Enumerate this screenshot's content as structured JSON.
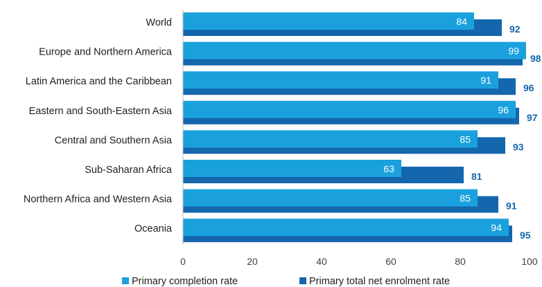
{
  "chart_data": {
    "type": "bar",
    "orientation": "horizontal",
    "title": "",
    "xlabel": "",
    "ylabel": "",
    "xlim": [
      0,
      100
    ],
    "x_ticks": [
      0,
      20,
      40,
      60,
      80,
      100
    ],
    "grid": false,
    "legend_position": "bottom",
    "categories": [
      "World",
      "Europe and Northern America",
      "Latin America and the Caribbean",
      "Eastern and South-Eastern Asia",
      "Central and Southern Asia",
      "Sub-Saharan Africa",
      "Northern Africa and Western Asia",
      "Oceania"
    ],
    "series": [
      {
        "name": "Primary completion rate",
        "values": [
          84,
          99,
          91,
          96,
          85,
          63,
          85,
          94
        ],
        "color": "#1aa1dd"
      },
      {
        "name": "Primary total net enrolment rate",
        "values": [
          92,
          98,
          96,
          97,
          93,
          81,
          91,
          95
        ],
        "color": "#1466ad"
      }
    ]
  }
}
